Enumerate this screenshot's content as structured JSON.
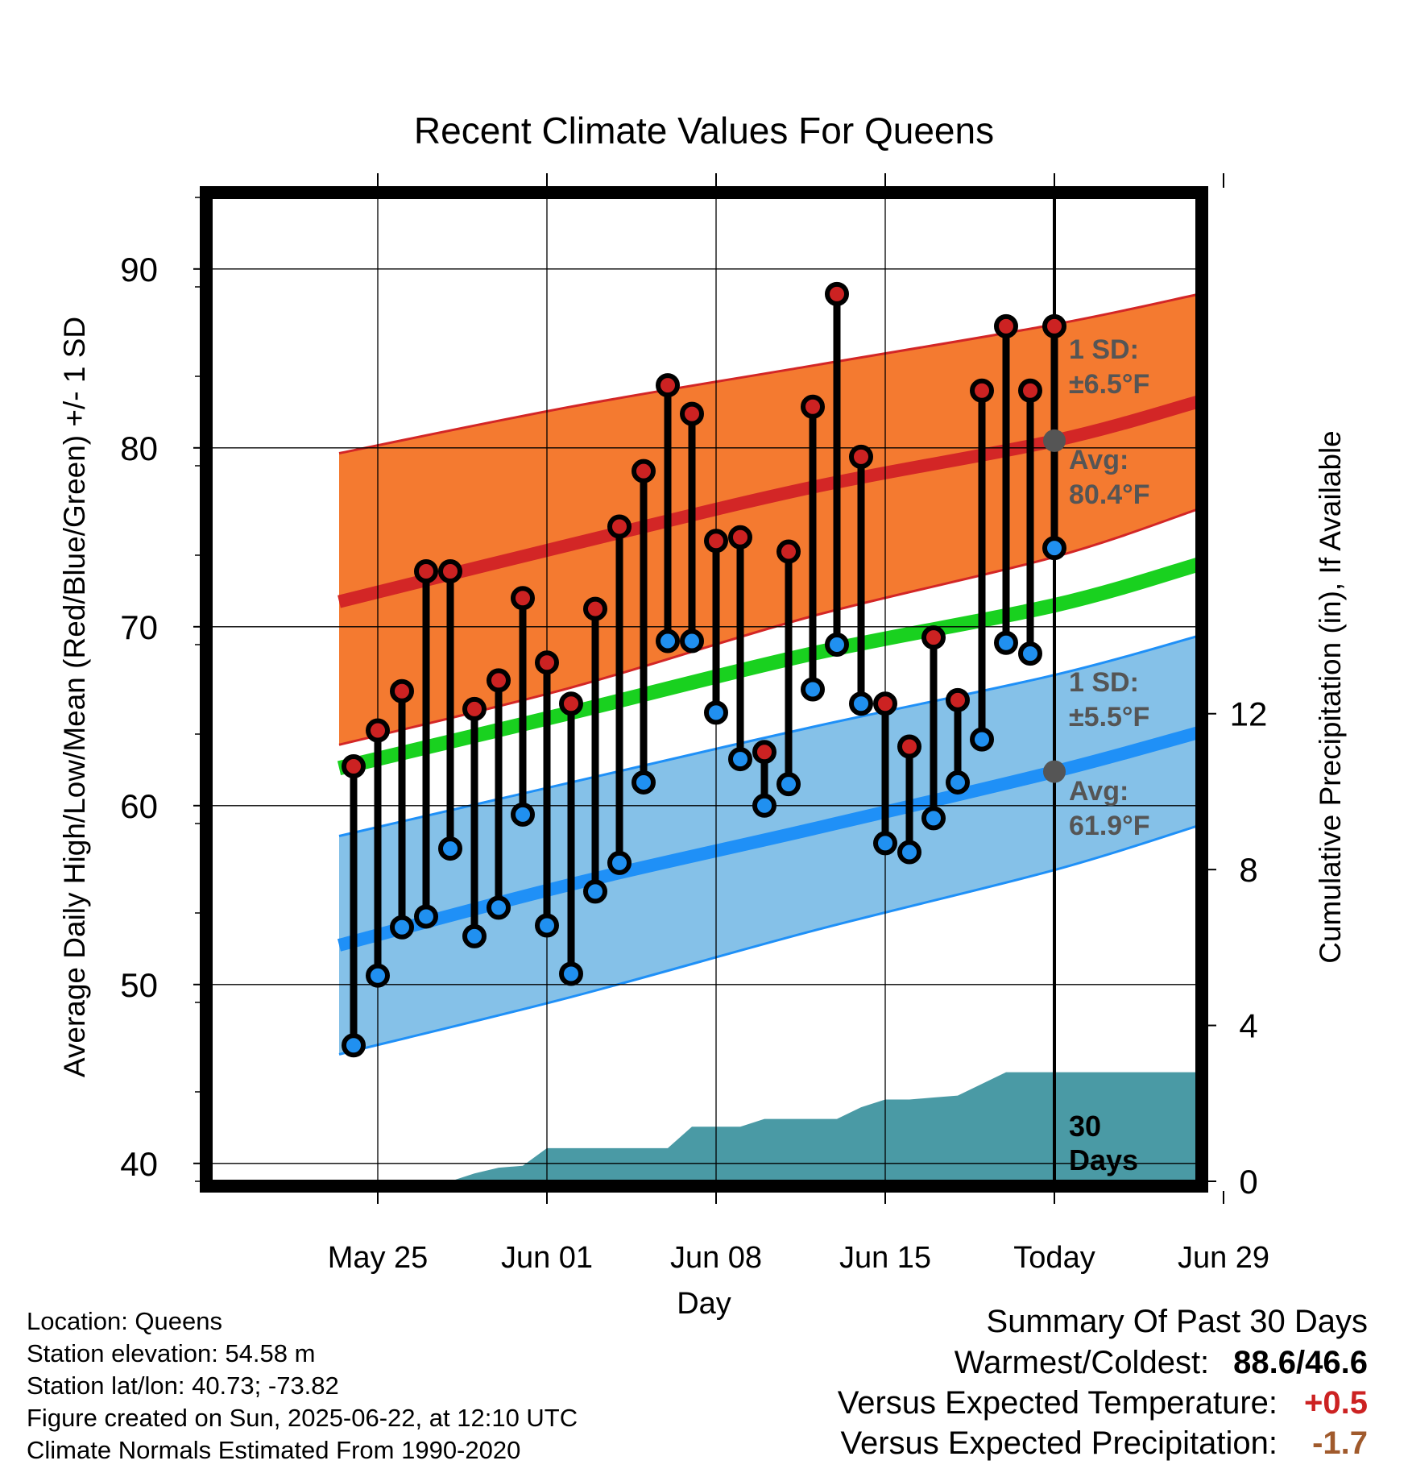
{
  "chart_data": {
    "type": "line",
    "title": "Recent Climate Values For Queens",
    "xlabel": "Day",
    "ylabel": "Average Daily High/Low/Mean (Red/Blue/Green) +/- 1 SD",
    "y2label": "Cumulative Precipitation (in), If Available",
    "ylim": [
      39,
      94
    ],
    "y2lim": [
      0,
      25.25
    ],
    "yticks": [
      40,
      50,
      60,
      70,
      80,
      90
    ],
    "y2ticks": [
      0,
      4,
      8,
      12
    ],
    "xlim": [
      -4.9,
      35.9
    ],
    "xtick_positions": [
      2,
      9,
      16,
      23,
      30,
      37
    ],
    "xtick_labels": [
      "May 25",
      "Jun 01",
      "Jun 08",
      "Jun 15",
      "Today",
      "Jun 29"
    ],
    "grid": true,
    "today_index": 30,
    "days": [
      1,
      2,
      3,
      4,
      5,
      6,
      7,
      8,
      9,
      10,
      11,
      12,
      13,
      14,
      15,
      16,
      17,
      18,
      19,
      20,
      21,
      22,
      23,
      24,
      25,
      26,
      27,
      28,
      29,
      30
    ],
    "series": [
      {
        "name": "High",
        "color": "#cc2222",
        "values": [
          62.2,
          64.2,
          66.4,
          73.1,
          73.1,
          65.4,
          67.0,
          71.6,
          68.0,
          65.7,
          71.0,
          75.6,
          78.7,
          83.5,
          81.9,
          74.8,
          75.0,
          63.0,
          74.2,
          82.3,
          88.6,
          79.5,
          65.7,
          63.3,
          69.4,
          65.9,
          83.2,
          86.8,
          83.2,
          86.8
        ]
      },
      {
        "name": "Low",
        "color": "#2090f0",
        "values": [
          46.6,
          50.5,
          53.2,
          53.8,
          57.6,
          52.7,
          54.3,
          59.5,
          53.3,
          50.6,
          55.2,
          56.8,
          61.3,
          69.2,
          69.2,
          65.2,
          62.6,
          60.0,
          61.2,
          66.5,
          69.0,
          65.7,
          57.9,
          57.4,
          59.3,
          61.3,
          63.7,
          69.1,
          68.5,
          74.4
        ]
      }
    ],
    "normals": {
      "x": [
        0.4,
        10,
        20,
        30,
        36
      ],
      "high_mean": [
        71.4,
        74.6,
        77.8,
        80.4,
        82.6
      ],
      "high_upper": [
        79.7,
        82.3,
        84.6,
        86.9,
        88.6
      ],
      "high_lower": [
        63.4,
        66.6,
        70.6,
        73.9,
        76.6
      ],
      "low_mean": [
        52.2,
        55.6,
        58.7,
        61.9,
        64.1
      ],
      "low_upper": [
        58.3,
        61.3,
        64.4,
        67.3,
        69.5
      ],
      "low_lower": [
        46.1,
        49.3,
        53.0,
        56.4,
        58.9
      ],
      "mean": [
        62.1,
        65.2,
        68.5,
        71.2,
        73.5
      ]
    },
    "precipitation": {
      "x": [
        0.4,
        5,
        6,
        7,
        8,
        9,
        10,
        11,
        12,
        13,
        14,
        15,
        16,
        17,
        18,
        19,
        20,
        21,
        22,
        23,
        24,
        25,
        26,
        27,
        28,
        29,
        30,
        36
      ],
      "values": [
        0,
        0,
        0.2,
        0.35,
        0.4,
        0.85,
        0.85,
        0.85,
        0.85,
        0.85,
        0.85,
        1.4,
        1.4,
        1.4,
        1.6,
        1.6,
        1.6,
        1.6,
        1.9,
        2.1,
        2.1,
        2.15,
        2.2,
        2.5,
        2.8,
        2.8,
        2.8,
        2.8
      ],
      "color": "#4a9aa5"
    },
    "annotations": {
      "high_sd": {
        "line1": "1 SD:",
        "line2": "±6.5°F"
      },
      "high_avg": {
        "line1": "Avg:",
        "line2": "80.4°F",
        "value": 80.4
      },
      "low_sd": {
        "line1": "1 SD:",
        "line2": "±5.5°F"
      },
      "low_avg": {
        "line1": "Avg:",
        "line2": "61.9°F",
        "value": 61.9
      },
      "period_line1": "30",
      "period_line2": "Days"
    },
    "colors": {
      "high_band": "#f47a30",
      "high_line": "#d32626",
      "low_band": "#85c1e8",
      "low_line": "#1f90f7",
      "mean_line": "#19d11f",
      "annotation": "#555555"
    }
  },
  "info": {
    "location": "Location: Queens",
    "elevation": "Station elevation: 54.58 m",
    "latlon": "Station lat/lon: 40.73; -73.82",
    "created": "Figure created on Sun, 2025-06-22, at 12:10 UTC",
    "normals": "Climate Normals Estimated From 1990-2020"
  },
  "summary": {
    "title": "Summary Of Past 30 Days",
    "warm_cold_label": "Warmest/Coldest:",
    "warm_cold_value": "88.6/46.6",
    "temp_label": "Versus Expected Temperature:",
    "temp_value": "+0.5",
    "temp_color": "#cc2222",
    "precip_label": "Versus Expected Precipitation:",
    "precip_value": "-1.7",
    "precip_color": "#a05a2c"
  }
}
